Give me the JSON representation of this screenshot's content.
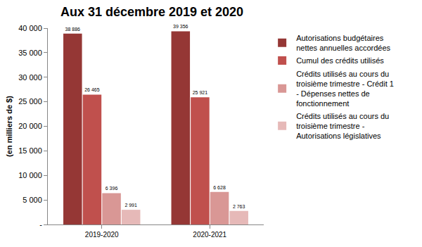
{
  "chart_data": {
    "type": "bar",
    "title": "Aux 31 décembre 2019 et 2020",
    "y_label": "(en milliers de $)",
    "categories": [
      "2019-2020",
      "2020-2021"
    ],
    "series": [
      {
        "name": "Autorisations budgétaires nettes annuelles accordées",
        "color": "#953735",
        "values": [
          38886,
          39356
        ],
        "value_labels": [
          "38 886",
          "39 356"
        ]
      },
      {
        "name": "Cumul des crédits utilisés",
        "color": "#C0504D",
        "values": [
          26465,
          25921
        ],
        "value_labels": [
          "26 465",
          "25 921"
        ]
      },
      {
        "name": "Crédits utilisés au cours du troisième trimestre - Crédit 1 - Dépenses nettes de fonctionnement",
        "color": "#D99795",
        "values": [
          6396,
          6628
        ],
        "value_labels": [
          "6 396",
          "6 628"
        ]
      },
      {
        "name": "Crédits utilisés au cours du troisième trimestre - Autorisations législatives",
        "color": "#E6B9B8",
        "values": [
          2991,
          2763
        ],
        "value_labels": [
          "2 991",
          "2 763"
        ]
      }
    ],
    "ylim": [
      0,
      40000
    ],
    "yticks": [
      {
        "value": 0,
        "label": "-"
      },
      {
        "value": 5000,
        "label": "5 000"
      },
      {
        "value": 10000,
        "label": "10 000"
      },
      {
        "value": 15000,
        "label": "15 000"
      },
      {
        "value": 20000,
        "label": "20 000"
      },
      {
        "value": 25000,
        "label": "25 000"
      },
      {
        "value": 30000,
        "label": "30 000"
      },
      {
        "value": 35000,
        "label": "35 000"
      },
      {
        "value": 40000,
        "label": "40 000"
      }
    ],
    "grid": false,
    "legend": "right",
    "data_labels": true
  }
}
